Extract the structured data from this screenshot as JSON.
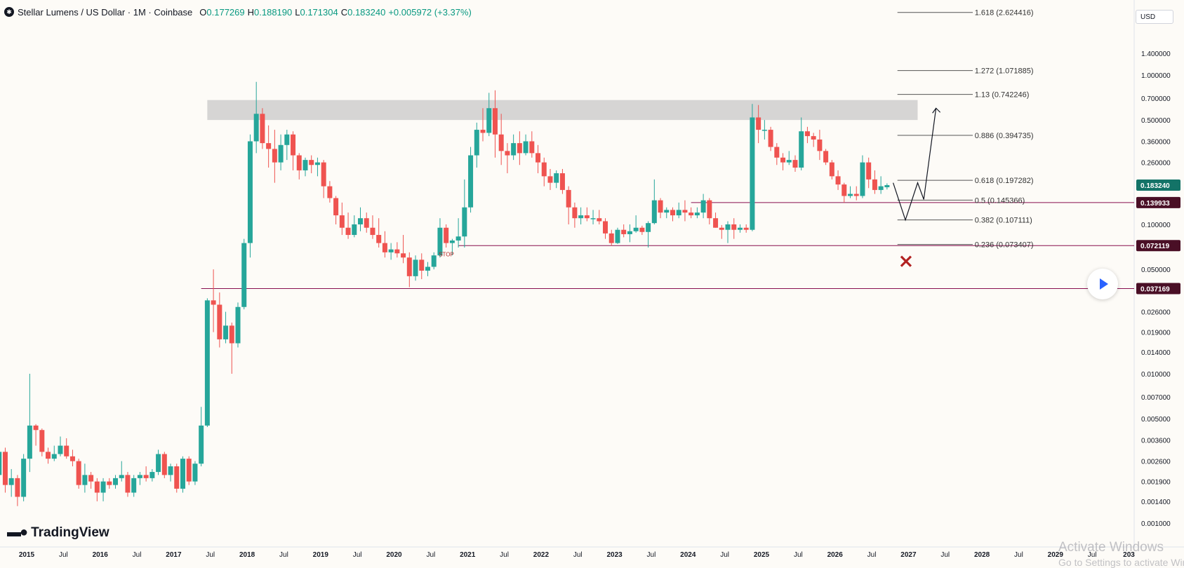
{
  "header": {
    "logo": "✱",
    "title": "Stellar Lumens / US Dollar · 1M · Coinbase",
    "open_label": "O",
    "open": "0.177269",
    "high_label": "H",
    "high": "0.188190",
    "low_label": "L",
    "low": "0.171304",
    "close_label": "C",
    "close": "0.183240",
    "change": "+0.005972 (+3.37%)"
  },
  "currency_selector": "USD",
  "brand": {
    "name": "TradingView",
    "icon": "tradingview-logo"
  },
  "play_button": {
    "icon": "play-icon"
  },
  "watermark": {
    "line1": "Activate Windows",
    "line2": "Go to Settings to activate Windows."
  },
  "colors": {
    "up": "#26a69a",
    "down": "#ef5350",
    "level_line": "#880e4f",
    "label_bg": "#4a0f26",
    "last_price_bg": "#137367",
    "stop": "#b22222",
    "resistance_zone": "#c8c8c8"
  },
  "chart_data": {
    "type": "candlestick",
    "title": "Stellar Lumens / US Dollar · 1M · Coinbase",
    "y_scale": "log",
    "y_ticks": [
      "1.400000",
      "1.000000",
      "0.700000",
      "0.500000",
      "0.360000",
      "0.260000",
      "0.100000",
      "0.050000",
      "0.026000",
      "0.019000",
      "0.014000",
      "0.010000",
      "0.007000",
      "0.005000",
      "0.003600",
      "0.002600",
      "0.001900",
      "0.001400",
      "0.001000"
    ],
    "x_ticks": [
      "2015",
      "Jul",
      "2016",
      "Jul",
      "2017",
      "Jul",
      "2018",
      "Jul",
      "2019",
      "Jul",
      "2020",
      "Jul",
      "2021",
      "Jul",
      "2022",
      "Jul",
      "2023",
      "Jul",
      "2024",
      "Jul",
      "2025",
      "Jul",
      "2026",
      "Jul",
      "2027",
      "Jul",
      "2028",
      "Jul",
      "2029",
      "Jul",
      "203"
    ],
    "price_labels": [
      {
        "value": 0.18324,
        "text": "0.183240",
        "kind": "last"
      },
      {
        "value": 0.139933,
        "text": "0.139933",
        "kind": "level"
      },
      {
        "value": 0.072119,
        "text": "0.072119",
        "kind": "level"
      },
      {
        "value": 0.037169,
        "text": "0.037169",
        "kind": "level"
      }
    ],
    "fib_levels": [
      {
        "ratio": "1.618",
        "price": 2.624416,
        "label": "1.618 (2.624416)"
      },
      {
        "ratio": "1.272",
        "price": 1.071885,
        "label": "1.272 (1.071885)"
      },
      {
        "ratio": "1.13",
        "price": 0.742246,
        "label": "1.13 (0.742246)"
      },
      {
        "ratio": "0.886",
        "price": 0.394735,
        "label": "0.886 (0.394735)"
      },
      {
        "ratio": "0.618",
        "price": 0.197282,
        "label": "0.618 (0.197282)"
      },
      {
        "ratio": "0.5",
        "price": 0.145366,
        "label": "0.5 (0.145366)"
      },
      {
        "ratio": "0.382",
        "price": 0.107111,
        "label": "0.382 (0.107111)"
      },
      {
        "ratio": "0.236",
        "price": 0.073407,
        "label": "0.236 (0.073407)"
      }
    ],
    "resistance_zone": {
      "low": 0.5,
      "high": 0.68,
      "from": "2017-06",
      "to": "2027-02"
    },
    "stop_label": "STOP",
    "projection_path": [
      [
        "2026-10",
        0.19
      ],
      [
        "2026-12",
        0.107
      ],
      [
        "2027-02",
        0.19
      ],
      [
        "2027-03",
        0.147
      ],
      [
        "2027-05",
        0.6
      ]
    ],
    "candles": [
      [
        "2014-08",
        0.0021,
        0.0031,
        0.0012,
        0.003
      ],
      [
        "2014-09",
        0.003,
        0.0032,
        0.0016,
        0.0018
      ],
      [
        "2014-10",
        0.0018,
        0.0023,
        0.0015,
        0.002
      ],
      [
        "2014-11",
        0.002,
        0.0021,
        0.0013,
        0.0015
      ],
      [
        "2014-12",
        0.0015,
        0.0029,
        0.0014,
        0.0027
      ],
      [
        "2015-01",
        0.0027,
        0.01,
        0.0022,
        0.0045
      ],
      [
        "2015-02",
        0.0045,
        0.0046,
        0.0033,
        0.0042
      ],
      [
        "2015-03",
        0.0042,
        0.0043,
        0.0028,
        0.003
      ],
      [
        "2015-04",
        0.003,
        0.0032,
        0.0025,
        0.0027
      ],
      [
        "2015-05",
        0.0027,
        0.0033,
        0.0026,
        0.0029
      ],
      [
        "2015-06",
        0.0029,
        0.0038,
        0.0028,
        0.0033
      ],
      [
        "2015-07",
        0.0033,
        0.0037,
        0.0027,
        0.0028
      ],
      [
        "2015-08",
        0.0028,
        0.0031,
        0.0024,
        0.0026
      ],
      [
        "2015-09",
        0.0026,
        0.0027,
        0.0017,
        0.0018
      ],
      [
        "2015-10",
        0.0018,
        0.0025,
        0.0016,
        0.0021
      ],
      [
        "2015-11",
        0.0021,
        0.0022,
        0.0017,
        0.0019
      ],
      [
        "2015-12",
        0.0019,
        0.002,
        0.0014,
        0.0016
      ],
      [
        "2016-01",
        0.0016,
        0.002,
        0.0014,
        0.0019
      ],
      [
        "2016-02",
        0.0019,
        0.002,
        0.0017,
        0.0018
      ],
      [
        "2016-03",
        0.0018,
        0.0021,
        0.0017,
        0.002
      ],
      [
        "2016-04",
        0.002,
        0.0026,
        0.0019,
        0.0021
      ],
      [
        "2016-05",
        0.0021,
        0.0022,
        0.0015,
        0.0016
      ],
      [
        "2016-06",
        0.0016,
        0.0021,
        0.0015,
        0.002
      ],
      [
        "2016-07",
        0.002,
        0.0022,
        0.0018,
        0.0021
      ],
      [
        "2016-08",
        0.0021,
        0.0024,
        0.0019,
        0.002
      ],
      [
        "2016-09",
        0.002,
        0.0023,
        0.0019,
        0.0022
      ],
      [
        "2016-10",
        0.0022,
        0.0031,
        0.0021,
        0.0029
      ],
      [
        "2016-11",
        0.0029,
        0.003,
        0.002,
        0.0021
      ],
      [
        "2016-12",
        0.0021,
        0.0025,
        0.0019,
        0.0024
      ],
      [
        "2017-01",
        0.0024,
        0.0025,
        0.0016,
        0.0017
      ],
      [
        "2017-02",
        0.0017,
        0.0028,
        0.0016,
        0.0027
      ],
      [
        "2017-03",
        0.0027,
        0.0028,
        0.0018,
        0.0019
      ],
      [
        "2017-04",
        0.0019,
        0.0026,
        0.0018,
        0.0025
      ],
      [
        "2017-05",
        0.0025,
        0.006,
        0.0024,
        0.0045
      ],
      [
        "2017-06",
        0.0045,
        0.032,
        0.0044,
        0.031
      ],
      [
        "2017-07",
        0.031,
        0.05,
        0.019,
        0.029
      ],
      [
        "2017-08",
        0.029,
        0.035,
        0.015,
        0.017
      ],
      [
        "2017-09",
        0.017,
        0.026,
        0.016,
        0.021
      ],
      [
        "2017-10",
        0.021,
        0.022,
        0.01,
        0.016
      ],
      [
        "2017-11",
        0.016,
        0.03,
        0.015,
        0.028
      ],
      [
        "2017-12",
        0.028,
        0.08,
        0.027,
        0.075
      ],
      [
        "2018-01",
        0.075,
        0.4,
        0.06,
        0.36
      ],
      [
        "2018-02",
        0.36,
        0.9,
        0.3,
        0.55
      ],
      [
        "2018-03",
        0.55,
        0.6,
        0.32,
        0.35
      ],
      [
        "2018-04",
        0.35,
        0.46,
        0.24,
        0.32
      ],
      [
        "2018-05",
        0.32,
        0.43,
        0.19,
        0.26
      ],
      [
        "2018-06",
        0.26,
        0.4,
        0.23,
        0.34
      ],
      [
        "2018-07",
        0.34,
        0.43,
        0.27,
        0.4
      ],
      [
        "2018-08",
        0.4,
        0.42,
        0.23,
        0.29
      ],
      [
        "2018-09",
        0.29,
        0.3,
        0.2,
        0.23
      ],
      [
        "2018-10",
        0.23,
        0.28,
        0.21,
        0.27
      ],
      [
        "2018-11",
        0.27,
        0.29,
        0.22,
        0.25
      ],
      [
        "2018-12",
        0.25,
        0.28,
        0.21,
        0.26
      ],
      [
        "2019-01",
        0.26,
        0.27,
        0.15,
        0.18
      ],
      [
        "2019-02",
        0.18,
        0.195,
        0.14,
        0.15
      ],
      [
        "2019-03",
        0.15,
        0.155,
        0.1,
        0.115
      ],
      [
        "2019-04",
        0.115,
        0.14,
        0.085,
        0.095
      ],
      [
        "2019-05",
        0.095,
        0.12,
        0.08,
        0.085
      ],
      [
        "2019-06",
        0.085,
        0.115,
        0.082,
        0.1
      ],
      [
        "2019-07",
        0.1,
        0.13,
        0.09,
        0.11
      ],
      [
        "2019-08",
        0.11,
        0.12,
        0.088,
        0.095
      ],
      [
        "2019-09",
        0.095,
        0.115,
        0.08,
        0.085
      ],
      [
        "2019-10",
        0.085,
        0.11,
        0.07,
        0.075
      ],
      [
        "2019-11",
        0.075,
        0.09,
        0.06,
        0.065
      ],
      [
        "2019-12",
        0.065,
        0.075,
        0.058,
        0.068
      ],
      [
        "2020-01",
        0.068,
        0.076,
        0.06,
        0.064
      ],
      [
        "2020-02",
        0.064,
        0.085,
        0.055,
        0.06
      ],
      [
        "2020-03",
        0.06,
        0.065,
        0.038,
        0.045
      ],
      [
        "2020-04",
        0.045,
        0.062,
        0.042,
        0.058
      ],
      [
        "2020-05",
        0.058,
        0.064,
        0.043,
        0.049
      ],
      [
        "2020-06",
        0.049,
        0.056,
        0.045,
        0.052
      ],
      [
        "2020-07",
        0.052,
        0.065,
        0.05,
        0.062
      ],
      [
        "2020-08",
        0.062,
        0.11,
        0.06,
        0.095
      ],
      [
        "2020-09",
        0.095,
        0.1,
        0.07,
        0.075
      ],
      [
        "2020-10",
        0.075,
        0.08,
        0.062,
        0.078
      ],
      [
        "2020-11",
        0.078,
        0.11,
        0.07,
        0.083
      ],
      [
        "2020-12",
        0.083,
        0.2,
        0.07,
        0.13
      ],
      [
        "2021-01",
        0.13,
        0.33,
        0.12,
        0.29
      ],
      [
        "2021-02",
        0.29,
        0.48,
        0.24,
        0.43
      ],
      [
        "2021-03",
        0.43,
        0.6,
        0.36,
        0.41
      ],
      [
        "2021-04",
        0.41,
        0.76,
        0.39,
        0.6
      ],
      [
        "2021-05",
        0.6,
        0.79,
        0.28,
        0.4
      ],
      [
        "2021-06",
        0.4,
        0.55,
        0.25,
        0.31
      ],
      [
        "2021-07",
        0.31,
        0.35,
        0.22,
        0.29
      ],
      [
        "2021-08",
        0.29,
        0.4,
        0.27,
        0.35
      ],
      [
        "2021-09",
        0.35,
        0.42,
        0.25,
        0.3
      ],
      [
        "2021-10",
        0.3,
        0.4,
        0.29,
        0.36
      ],
      [
        "2021-11",
        0.36,
        0.42,
        0.28,
        0.3
      ],
      [
        "2021-12",
        0.3,
        0.34,
        0.22,
        0.26
      ],
      [
        "2022-01",
        0.26,
        0.28,
        0.18,
        0.21
      ],
      [
        "2022-02",
        0.21,
        0.235,
        0.17,
        0.19
      ],
      [
        "2022-03",
        0.19,
        0.23,
        0.175,
        0.22
      ],
      [
        "2022-04",
        0.22,
        0.235,
        0.16,
        0.17
      ],
      [
        "2022-05",
        0.17,
        0.18,
        0.1,
        0.13
      ],
      [
        "2022-06",
        0.13,
        0.14,
        0.095,
        0.11
      ],
      [
        "2022-07",
        0.11,
        0.13,
        0.1,
        0.115
      ],
      [
        "2022-08",
        0.115,
        0.13,
        0.105,
        0.11
      ],
      [
        "2022-09",
        0.11,
        0.125,
        0.1,
        0.11
      ],
      [
        "2022-10",
        0.11,
        0.125,
        0.1,
        0.105
      ],
      [
        "2022-11",
        0.105,
        0.11,
        0.08,
        0.087
      ],
      [
        "2022-12",
        0.087,
        0.092,
        0.072,
        0.075
      ],
      [
        "2023-01",
        0.075,
        0.095,
        0.074,
        0.092
      ],
      [
        "2023-02",
        0.092,
        0.1,
        0.082,
        0.086
      ],
      [
        "2023-03",
        0.086,
        0.1,
        0.076,
        0.09
      ],
      [
        "2023-04",
        0.09,
        0.115,
        0.088,
        0.095
      ],
      [
        "2023-05",
        0.095,
        0.098,
        0.085,
        0.089
      ],
      [
        "2023-06",
        0.089,
        0.105,
        0.07,
        0.102
      ],
      [
        "2023-07",
        0.102,
        0.2,
        0.1,
        0.145
      ],
      [
        "2023-08",
        0.145,
        0.15,
        0.11,
        0.12
      ],
      [
        "2023-09",
        0.12,
        0.13,
        0.11,
        0.125
      ],
      [
        "2023-10",
        0.125,
        0.13,
        0.105,
        0.115
      ],
      [
        "2023-11",
        0.115,
        0.14,
        0.11,
        0.125
      ],
      [
        "2023-12",
        0.125,
        0.145,
        0.105,
        0.12
      ],
      [
        "2024-01",
        0.12,
        0.13,
        0.11,
        0.115
      ],
      [
        "2024-02",
        0.115,
        0.13,
        0.11,
        0.12
      ],
      [
        "2024-03",
        0.12,
        0.16,
        0.11,
        0.145
      ],
      [
        "2024-04",
        0.145,
        0.15,
        0.1,
        0.11
      ],
      [
        "2024-05",
        0.11,
        0.12,
        0.095,
        0.095
      ],
      [
        "2024-06",
        0.095,
        0.099,
        0.08,
        0.092
      ],
      [
        "2024-07",
        0.092,
        0.105,
        0.075,
        0.1
      ],
      [
        "2024-08",
        0.1,
        0.11,
        0.08,
        0.092
      ],
      [
        "2024-09",
        0.092,
        0.1,
        0.088,
        0.095
      ],
      [
        "2024-10",
        0.095,
        0.1,
        0.088,
        0.092
      ],
      [
        "2024-11",
        0.092,
        0.64,
        0.09,
        0.52
      ],
      [
        "2024-12",
        0.52,
        0.63,
        0.35,
        0.43
      ],
      [
        "2025-01",
        0.43,
        0.5,
        0.37,
        0.43
      ],
      [
        "2025-02",
        0.43,
        0.45,
        0.31,
        0.33
      ],
      [
        "2025-03",
        0.33,
        0.35,
        0.25,
        0.28
      ],
      [
        "2025-04",
        0.28,
        0.3,
        0.23,
        0.26
      ],
      [
        "2025-05",
        0.26,
        0.31,
        0.25,
        0.27
      ],
      [
        "2025-06",
        0.27,
        0.29,
        0.225,
        0.24
      ],
      [
        "2025-07",
        0.24,
        0.52,
        0.23,
        0.42
      ],
      [
        "2025-08",
        0.42,
        0.45,
        0.35,
        0.39
      ],
      [
        "2025-09",
        0.39,
        0.41,
        0.33,
        0.37
      ],
      [
        "2025-10",
        0.37,
        0.43,
        0.27,
        0.31
      ],
      [
        "2025-11",
        0.31,
        0.32,
        0.25,
        0.26
      ],
      [
        "2025-12",
        0.26,
        0.27,
        0.2,
        0.21
      ],
      [
        "2026-01",
        0.21,
        0.23,
        0.17,
        0.185
      ],
      [
        "2026-02",
        0.185,
        0.19,
        0.14,
        0.155
      ],
      [
        "2026-03",
        0.155,
        0.18,
        0.15,
        0.16
      ],
      [
        "2026-04",
        0.16,
        0.18,
        0.145,
        0.155
      ],
      [
        "2026-05",
        0.155,
        0.29,
        0.15,
        0.26
      ],
      [
        "2026-06",
        0.26,
        0.28,
        0.175,
        0.2
      ],
      [
        "2026-07",
        0.2,
        0.23,
        0.16,
        0.17
      ],
      [
        "2026-08",
        0.17,
        0.21,
        0.16,
        0.18
      ],
      [
        "2026-09",
        0.1773,
        0.1882,
        0.1713,
        0.1832
      ]
    ]
  }
}
